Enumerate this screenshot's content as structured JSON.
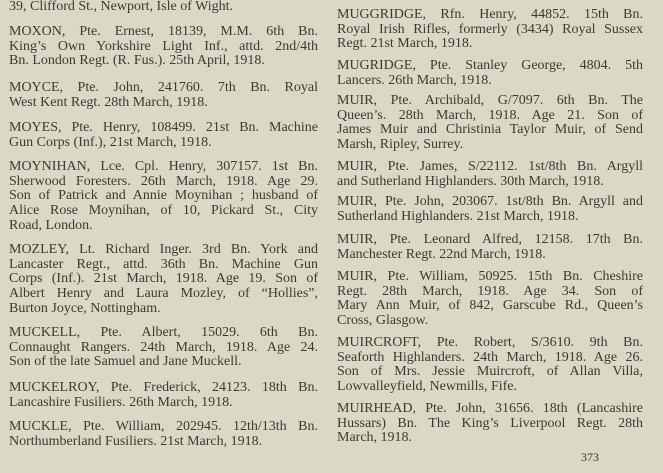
{
  "left_column": [
    {
      "lines": [
        "39, Clifford St., Newport, Isle of Wight."
      ]
    },
    {
      "lines": [
        "MOXON, Pte. Ernest, 18139, M.M.  6th Bn.",
        "King’s Own Yorkshire Light Inf., attd. 2nd/4th",
        "Bn. London Regt. (R. Fus.).  25th April, 1918."
      ]
    },
    {
      "lines": [
        "MOYCE, Pte. John, 241760.  7th Bn. Royal",
        "West Kent Regt.  28th March, 1918."
      ]
    },
    {
      "lines": [
        "MOYES, Pte. Henry, 108499.  21st Bn. Machine",
        "Gun Corps (Inf.),  21st March, 1918."
      ]
    },
    {
      "lines": [
        "MOYNIHAN, Lce. Cpl. Henry, 307157.  1st Bn.",
        "Sherwood Foresters.  26th March, 1918.  Age 29.",
        "Son of Patrick and Annie Moynihan ;  husband of",
        "Alice Rose Moynihan, of 10, Pickard St., City",
        "Road, London."
      ]
    },
    {
      "lines": [
        "MOZLEY, Lt. Richard Inger.  3rd Bn. York and",
        "Lancaster Regt., attd. 36th Bn. Machine Gun",
        "Corps (Inf.).  21st March, 1918.  Age 19.  Son of",
        "Albert Henry and Laura Mozley, of “Hollies”,",
        "Burton Joyce, Nottingham."
      ]
    },
    {
      "lines": [
        "MUCKELL, Pte. Albert, 15029.  6th Bn.",
        "Connaught Rangers.  24th March, 1918.  Age 24.",
        "Son of the late Samuel and Jane Muckell."
      ]
    },
    {
      "lines": [
        "MUCKELROY, Pte. Frederick, 24123.  18th Bn.",
        "Lancashire Fusiliers.  26th March, 1918."
      ]
    },
    {
      "lines": [
        "MUCKLE, Pte. William, 202945.  12th/13th Bn.",
        "Northumberland Fusiliers.  21st March, 1918."
      ]
    }
  ],
  "right_column": [
    {
      "lines": [
        "MUGGRIDGE, Rfn. Henry, 44852.  15th Bn.",
        "Royal Irish Rifles, formerly (3434) Royal Sussex",
        "Regt.  21st March, 1918."
      ]
    },
    {
      "lines": [
        "MUGRIDGE, Pte. Stanley George, 4804.  5th",
        "Lancers.  26th March, 1918."
      ]
    },
    {
      "lines": [
        "MUIR, Pte. Archibald, G/7097.  6th Bn. The",
        "Queen’s.  28th March, 1918.  Age 21.  Son of",
        "James Muir and Christinia Taylor Muir, of Send",
        "Marsh, Ripley, Surrey."
      ]
    },
    {
      "lines": [
        "MUIR, Pte. James, S/22112.  1st/8th Bn. Argyll",
        "and Sutherland Highlanders.  30th March, 1918."
      ]
    },
    {
      "lines": [
        "MUIR, Pte. John, 203067.  1st/8th Bn. Argyll and",
        "Sutherland Highlanders.  21st March, 1918."
      ]
    },
    {
      "lines": [
        "MUIR, Pte. Leonard Alfred, 12158.  17th Bn.",
        "Manchester Regt.  22nd March, 1918."
      ]
    },
    {
      "lines": [
        "MUIR, Pte. William, 50925.  15th Bn. Cheshire",
        "Regt.  28th March, 1918.  Age 34.  Son of",
        "Mary Ann Muir, of 842, Garscube Rd., Queen’s",
        "Cross, Glasgow."
      ]
    },
    {
      "lines": [
        "MUIRCROFT, Pte. Robert, S/3610.  9th Bn.",
        "Seaforth Highlanders.  24th March, 1918.  Age 26.",
        "Son of Mrs. Jessie Muircroft, of Allan Villa,",
        "Lowvalleyfield, Newmills, Fife."
      ]
    },
    {
      "lines": [
        "MUIRHEAD, Pte. John, 31656.  18th (Lancashire",
        "Hussars) Bn. The King’s Liverpool Regt.  28th",
        "March, 1918."
      ]
    }
  ],
  "page_number": "373"
}
